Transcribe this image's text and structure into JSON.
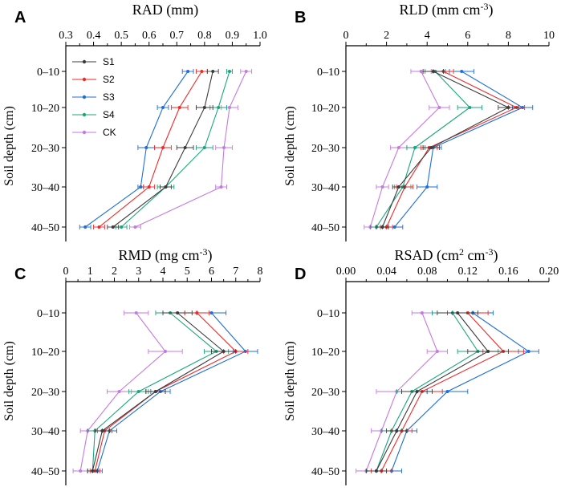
{
  "colors": {
    "S1": "#3c3c3c",
    "S2": "#ee2a2a",
    "S3": "#1f6fd6",
    "S4": "#19a67a",
    "CK": "#c67ae0"
  },
  "legend": [
    "S1",
    "S2",
    "S3",
    "S4",
    "CK"
  ],
  "depth_labels": [
    "0–10",
    "10–20",
    "20–30",
    "30–40",
    "40–50"
  ],
  "chart_data": [
    {
      "type": "line",
      "panel": "A",
      "letter": "A",
      "title": "RAD (mm)",
      "title_main": "RAD (mm)",
      "title_sup": "",
      "title_after": "",
      "ylabel": "Soil depth (cm)",
      "xlim": [
        0.3,
        1.0
      ],
      "ticks": [
        "0.3",
        "0.4",
        "0.5",
        "0.6",
        "0.7",
        "0.8",
        "0.9",
        "1.0"
      ],
      "categories": [
        "0–10",
        "10–20",
        "20–30",
        "30–40",
        "40–50"
      ],
      "show_legend": true,
      "series": [
        {
          "name": "S1",
          "values": [
            0.83,
            0.8,
            0.73,
            0.66,
            0.47
          ],
          "err": [
            0.02,
            0.03,
            0.03,
            0.02,
            0.02
          ]
        },
        {
          "name": "S2",
          "values": [
            0.79,
            0.71,
            0.65,
            0.6,
            0.42
          ],
          "err": [
            0.02,
            0.03,
            0.03,
            0.02,
            0.02
          ]
        },
        {
          "name": "S3",
          "values": [
            0.74,
            0.65,
            0.59,
            0.57,
            0.37
          ],
          "err": [
            0.02,
            0.02,
            0.03,
            0.01,
            0.02
          ]
        },
        {
          "name": "S4",
          "values": [
            0.89,
            0.85,
            0.8,
            0.66,
            0.5
          ],
          "err": [
            0.01,
            0.03,
            0.03,
            0.03,
            0.02
          ]
        },
        {
          "name": "CK",
          "values": [
            0.95,
            0.89,
            0.87,
            0.86,
            0.55
          ],
          "err": [
            0.02,
            0.03,
            0.03,
            0.02,
            0.02
          ]
        }
      ]
    },
    {
      "type": "line",
      "panel": "B",
      "letter": "B",
      "title": "RLD (mm cm-3)",
      "title_main": "RLD (mm cm",
      "title_sup": "-3",
      "title_after": ")",
      "ylabel": "Soil depth (cm)",
      "xlim": [
        0,
        10
      ],
      "ticks": [
        "0",
        "2",
        "4",
        "6",
        "8",
        "10"
      ],
      "categories": [
        "0–10",
        "10–20",
        "20–30",
        "30–40",
        "40–50"
      ],
      "show_legend": false,
      "series": [
        {
          "name": "S1",
          "values": [
            4.3,
            8.0,
            4.2,
            2.6,
            1.8
          ],
          "err": [
            0.5,
            0.5,
            0.4,
            0.3,
            0.3
          ]
        },
        {
          "name": "S2",
          "values": [
            4.8,
            8.4,
            4.1,
            2.9,
            2.0
          ],
          "err": [
            0.5,
            0.4,
            0.4,
            0.4,
            0.3
          ]
        },
        {
          "name": "S3",
          "values": [
            5.7,
            8.7,
            4.3,
            4.0,
            2.4
          ],
          "err": [
            0.6,
            0.5,
            0.4,
            0.5,
            0.4
          ]
        },
        {
          "name": "S4",
          "values": [
            4.4,
            6.1,
            3.4,
            2.8,
            1.5
          ],
          "err": [
            0.5,
            0.6,
            0.4,
            0.4,
            0.3
          ]
        },
        {
          "name": "CK",
          "values": [
            3.7,
            4.6,
            2.6,
            1.8,
            1.2
          ],
          "err": [
            0.5,
            0.5,
            0.4,
            0.3,
            0.3
          ]
        }
      ]
    },
    {
      "type": "line",
      "panel": "C",
      "letter": "C",
      "title": "RMD (mg cm-3)",
      "title_main": "RMD (mg cm",
      "title_sup": "-3",
      "title_after": ")",
      "ylabel": "Soil depth (cm)",
      "xlim": [
        0,
        8
      ],
      "ticks": [
        "0",
        "1",
        "2",
        "3",
        "4",
        "5",
        "6",
        "7",
        "8"
      ],
      "categories": [
        "0–10",
        "10–20",
        "20–30",
        "30–40",
        "40–50"
      ],
      "show_legend": false,
      "series": [
        {
          "name": "S1",
          "values": [
            4.6,
            6.5,
            3.7,
            1.5,
            1.1
          ],
          "err": [
            0.6,
            0.5,
            0.4,
            0.3,
            0.2
          ]
        },
        {
          "name": "S2",
          "values": [
            5.4,
            7.0,
            3.7,
            1.6,
            1.2
          ],
          "err": [
            0.5,
            0.5,
            0.4,
            0.3,
            0.2
          ]
        },
        {
          "name": "S3",
          "values": [
            6.0,
            7.4,
            3.9,
            1.8,
            1.3
          ],
          "err": [
            0.6,
            0.5,
            0.4,
            0.3,
            0.2
          ]
        },
        {
          "name": "S4",
          "values": [
            4.3,
            6.2,
            3.0,
            1.2,
            1.1
          ],
          "err": [
            0.6,
            0.5,
            0.4,
            0.3,
            0.2
          ]
        },
        {
          "name": "CK",
          "values": [
            2.9,
            4.1,
            2.2,
            0.9,
            0.6
          ],
          "err": [
            0.5,
            0.7,
            0.5,
            0.3,
            0.3
          ]
        }
      ]
    },
    {
      "type": "line",
      "panel": "D",
      "letter": "D",
      "title": "RSAD (cm2 cm-3)",
      "title_main": "RSAD (cm",
      "title_sup": "2",
      "title_after": " cm",
      "title_sup2": "-3",
      "title_after2": ")",
      "ylabel": "Soil depth (cm)",
      "xlim": [
        0,
        0.2
      ],
      "ticks": [
        "0.00",
        "0.04",
        "0.08",
        "0.12",
        "0.16",
        "0.20"
      ],
      "categories": [
        "0–10",
        "10–20",
        "20–30",
        "30–40",
        "40–50"
      ],
      "show_legend": false,
      "series": [
        {
          "name": "S1",
          "values": [
            0.11,
            0.14,
            0.07,
            0.05,
            0.03
          ],
          "err": [
            0.02,
            0.02,
            0.015,
            0.01,
            0.01
          ]
        },
        {
          "name": "S2",
          "values": [
            0.12,
            0.155,
            0.075,
            0.055,
            0.035
          ],
          "err": [
            0.02,
            0.02,
            0.02,
            0.01,
            0.01
          ]
        },
        {
          "name": "S3",
          "values": [
            0.125,
            0.18,
            0.1,
            0.06,
            0.045
          ],
          "err": [
            0.02,
            0.01,
            0.02,
            0.01,
            0.01
          ]
        },
        {
          "name": "S4",
          "values": [
            0.105,
            0.13,
            0.065,
            0.045,
            0.03
          ],
          "err": [
            0.02,
            0.02,
            0.015,
            0.01,
            0.01
          ]
        },
        {
          "name": "CK",
          "values": [
            0.075,
            0.09,
            0.05,
            0.035,
            0.02
          ],
          "err": [
            0.01,
            0.01,
            0.02,
            0.01,
            0.01
          ]
        }
      ]
    }
  ]
}
